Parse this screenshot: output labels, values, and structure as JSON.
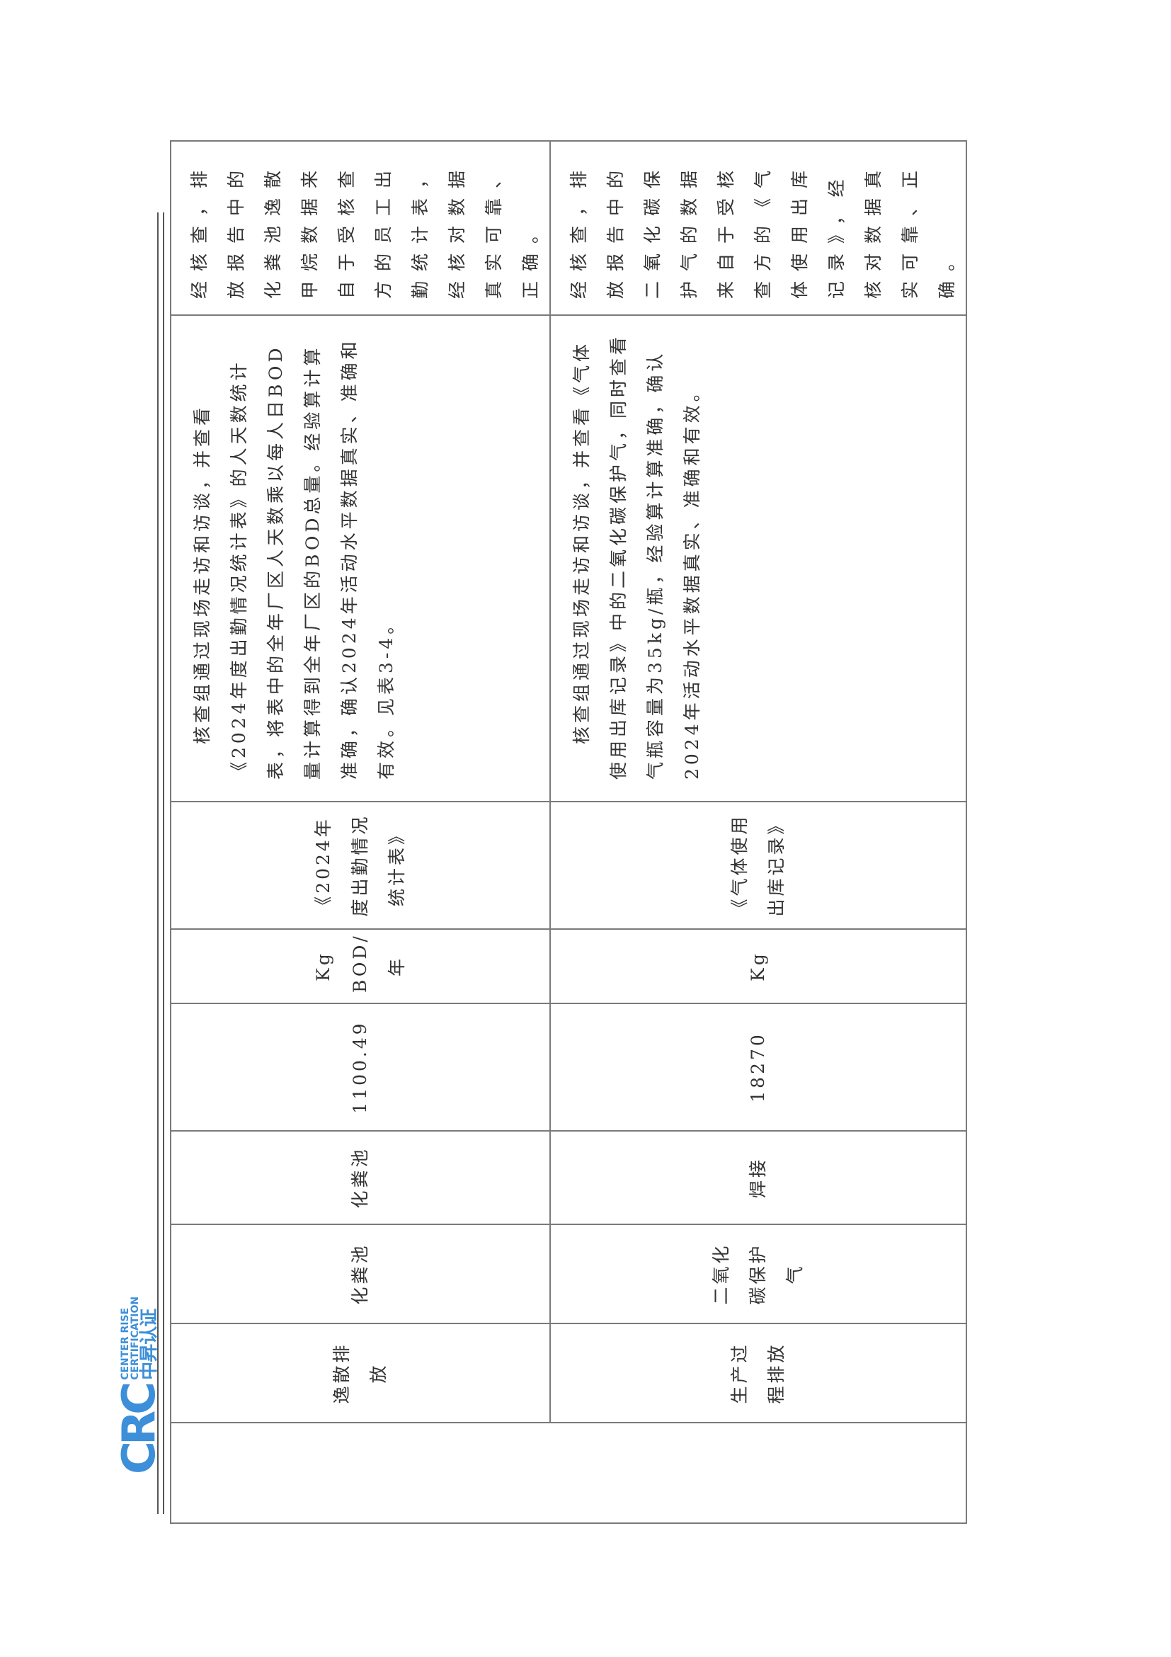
{
  "logo": {
    "text_en_1": "CENTER RISE",
    "text_en_2": "CERTIFICATION",
    "text_cn": "中昇认证",
    "mark": "CRC",
    "color": "#3c8fd8"
  },
  "table": {
    "rows": [
      {
        "category": "逸散排放",
        "source": "化粪池",
        "facility": "化粪池",
        "value": "1100.49",
        "unit": "Kg BOD/年",
        "document": "《2024年度出勤情况统计表》",
        "description": "核查组通过现场走访和访谈，并查看《2024年度出勤情况统计表》的人天数统计表，将表中的全年厂区人天数乘以每人日BOD量计算得到全年厂区的BOD总量。经验算计算准确，确认2024年活动水平数据真实、准确和有效。见表3-4。",
        "conclusion": "经核查，排放报告中的化粪池逸散甲烷数据来自于受核查方的员工出勤统计表，经核对数据真实可靠、正确。"
      },
      {
        "category": "生产过程排放",
        "source": "二氧化碳保护气",
        "facility": "焊接",
        "value": "18270",
        "unit": "Kg",
        "document": "《气体使用出库记录》",
        "description": "核查组通过现场走访和访谈，并查看《气体使用出库记录》中的二氧化碳保护气，同时查看气瓶容量为35kg/瓶，经验算计算准确，确认2024年活动水平数据真实、准确和有效。",
        "conclusion": "经核查，排放报告中的二氧化碳保护气的数据来自于受核查方的《气体使用出库记录》，经核对数据真实可靠、正确。"
      }
    ]
  }
}
